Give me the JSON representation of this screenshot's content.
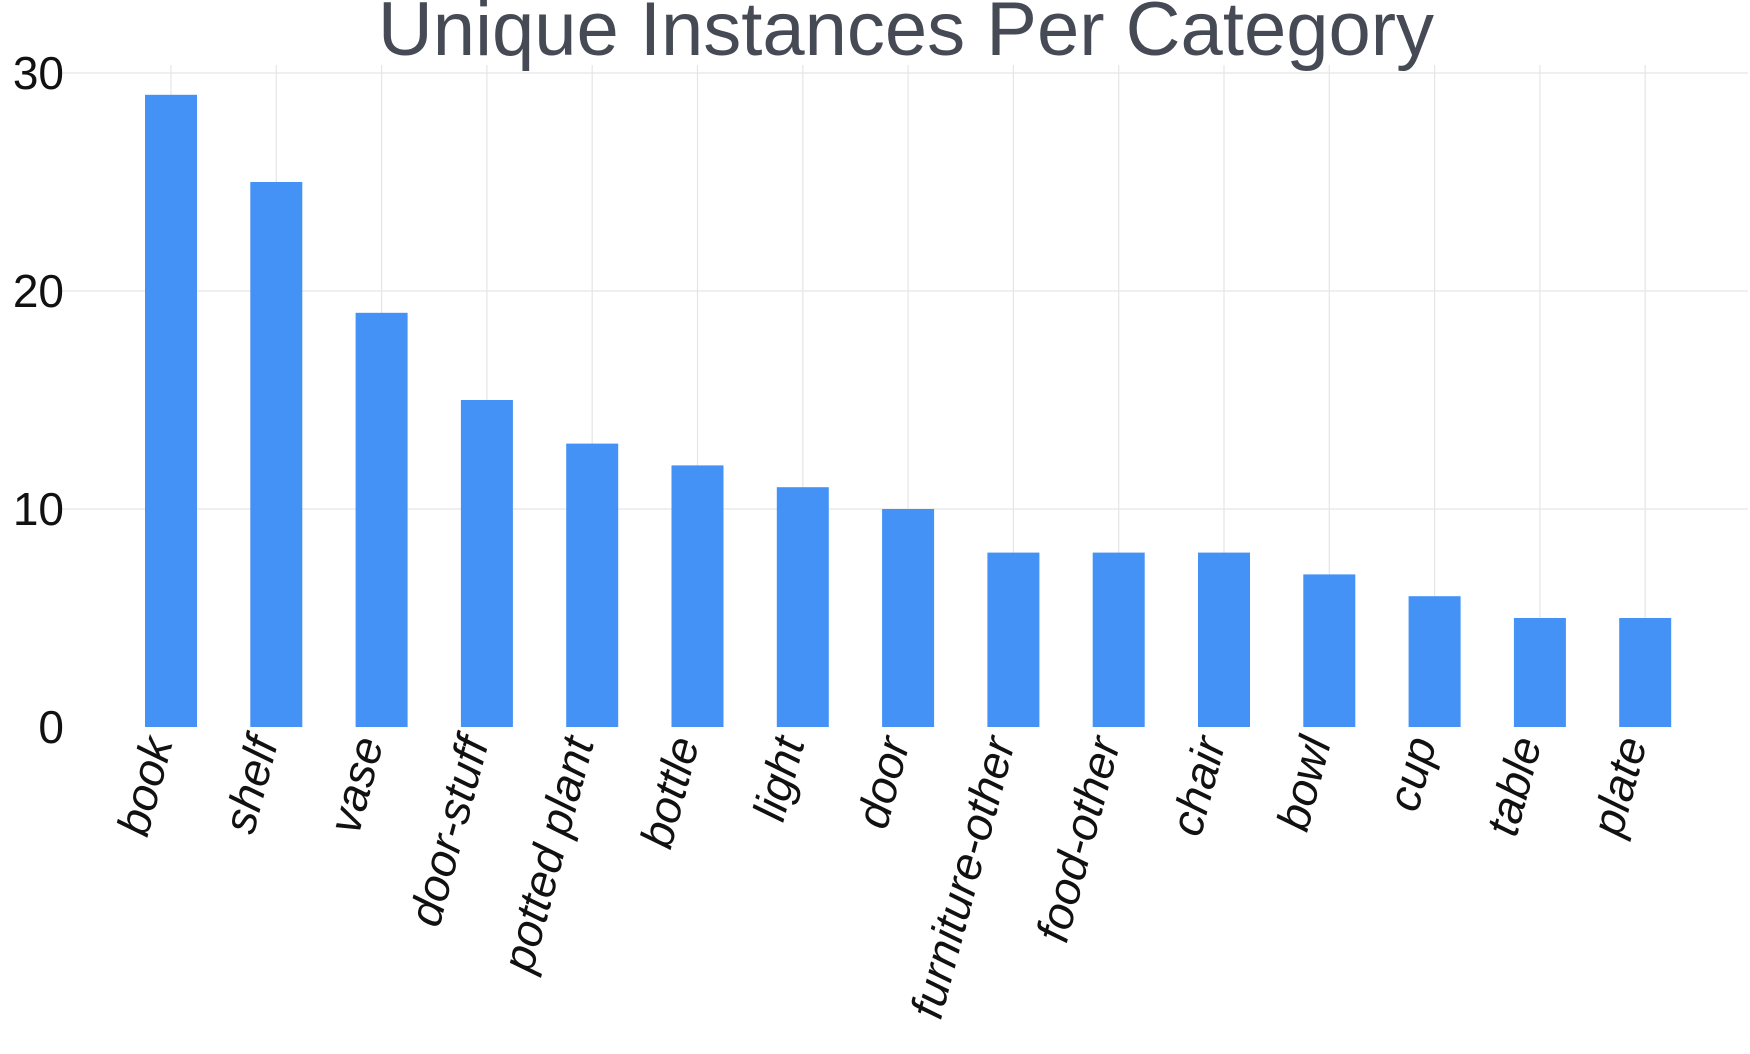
{
  "chart_data": {
    "type": "bar",
    "title": "Unique Instances Per Category",
    "xlabel": "",
    "ylabel": "",
    "categories": [
      "book",
      "shelf",
      "vase",
      "door-stuff",
      "potted plant",
      "bottle",
      "light",
      "door",
      "furniture-other",
      "food-other",
      "chair",
      "bowl",
      "cup",
      "table",
      "plate"
    ],
    "values": [
      29,
      25,
      19,
      15,
      13,
      12,
      11,
      10,
      8,
      8,
      8,
      7,
      6,
      5,
      5
    ],
    "ylim": [
      0,
      30
    ],
    "yticks": [
      0,
      10,
      20,
      30
    ],
    "grid": true,
    "legend": "none",
    "colors": {
      "bar": "#4492f5",
      "title": "#454a55",
      "grid": "#e5e5e5",
      "tick_text": "#111111"
    }
  }
}
